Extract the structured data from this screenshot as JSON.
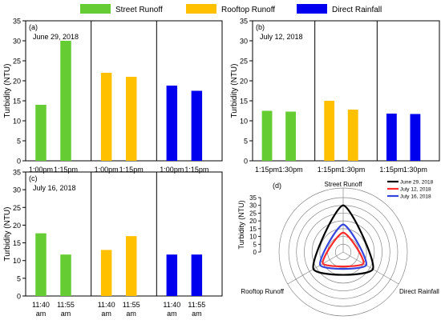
{
  "colors": {
    "street": "#66cc33",
    "rooftop": "#ffc000",
    "direct": "#0000ee",
    "june": "#000000",
    "july12": "#ff2a2a",
    "july16": "#3344dd"
  },
  "legend": {
    "items": [
      {
        "label": "Street Runoff",
        "color_key": "street"
      },
      {
        "label": "Rooftop Runoff",
        "color_key": "rooftop"
      },
      {
        "label": "Direct Rainfall",
        "color_key": "direct"
      }
    ]
  },
  "chart_data": [
    {
      "type": "bar",
      "panel_label": "(a)",
      "date": "June 29, 2018",
      "ylabel": "Turbidity (NTU)",
      "ylim": [
        0,
        35
      ],
      "yticks": [
        0,
        5,
        10,
        15,
        20,
        25,
        30,
        35
      ],
      "groups": [
        {
          "name": "Street Runoff",
          "color_key": "street",
          "categories": [
            "1:00pm",
            "1:15pm"
          ],
          "values": [
            14,
            30
          ]
        },
        {
          "name": "Rooftop Runoff",
          "color_key": "rooftop",
          "categories": [
            "1:00pm",
            "1:15pm"
          ],
          "values": [
            22,
            21
          ]
        },
        {
          "name": "Direct Rainfall",
          "color_key": "direct",
          "categories": [
            "1:00pm",
            "1:15pm"
          ],
          "values": [
            18.8,
            17.5
          ]
        }
      ]
    },
    {
      "type": "bar",
      "panel_label": "(b)",
      "date": "July 12, 2018",
      "ylabel": "Turbidity (NTU)",
      "ylim": [
        0,
        35
      ],
      "yticks": [
        0,
        5,
        10,
        15,
        20,
        25,
        30,
        35
      ],
      "groups": [
        {
          "name": "Street Runoff",
          "color_key": "street",
          "categories": [
            "1:15pm",
            "1:30pm"
          ],
          "values": [
            12.5,
            12.3
          ]
        },
        {
          "name": "Rooftop Runoff",
          "color_key": "rooftop",
          "categories": [
            "1:15pm",
            "1:30pm"
          ],
          "values": [
            15,
            12.8
          ]
        },
        {
          "name": "Direct Rainfall",
          "color_key": "direct",
          "categories": [
            "1:15pm",
            "1:30pm"
          ],
          "values": [
            11.8,
            11.7
          ]
        }
      ]
    },
    {
      "type": "bar",
      "panel_label": "(c)",
      "date": "July 16, 2018",
      "ylabel": "Turbidity (NTU)",
      "ylim": [
        0,
        35
      ],
      "yticks": [
        0,
        5,
        10,
        15,
        20,
        25,
        30,
        35
      ],
      "groups": [
        {
          "name": "Street Runoff",
          "color_key": "street",
          "categories": [
            "11:40\nam",
            "11:55\nam"
          ],
          "values": [
            17.7,
            11.7
          ]
        },
        {
          "name": "Rooftop Runoff",
          "color_key": "rooftop",
          "categories": [
            "11:40\nam",
            "11:55\nam"
          ],
          "values": [
            13,
            16.9
          ]
        },
        {
          "name": "Direct Rainfall",
          "color_key": "direct",
          "categories": [
            "11:40\nam",
            "11:55\nam"
          ],
          "values": [
            11.7,
            11.7
          ]
        }
      ]
    },
    {
      "type": "radar",
      "panel_label": "(d)",
      "ylabel": "Turbidity (NTU)",
      "rlim": [
        0,
        35
      ],
      "rticks": [
        0,
        5,
        10,
        15,
        20,
        25,
        30,
        35
      ],
      "axes": [
        "Street Runoff",
        "Direct Rainfall",
        "Rooftop Runoff"
      ],
      "series": [
        {
          "name": "June 29, 2018",
          "color_key": "june",
          "values": [
            30,
            22,
            22
          ]
        },
        {
          "name": "July 12, 2018",
          "color_key": "july12",
          "values": [
            12.5,
            15,
            15
          ]
        },
        {
          "name": "July 16, 2018",
          "color_key": "july16",
          "values": [
            17.7,
            17,
            17
          ]
        }
      ]
    }
  ]
}
